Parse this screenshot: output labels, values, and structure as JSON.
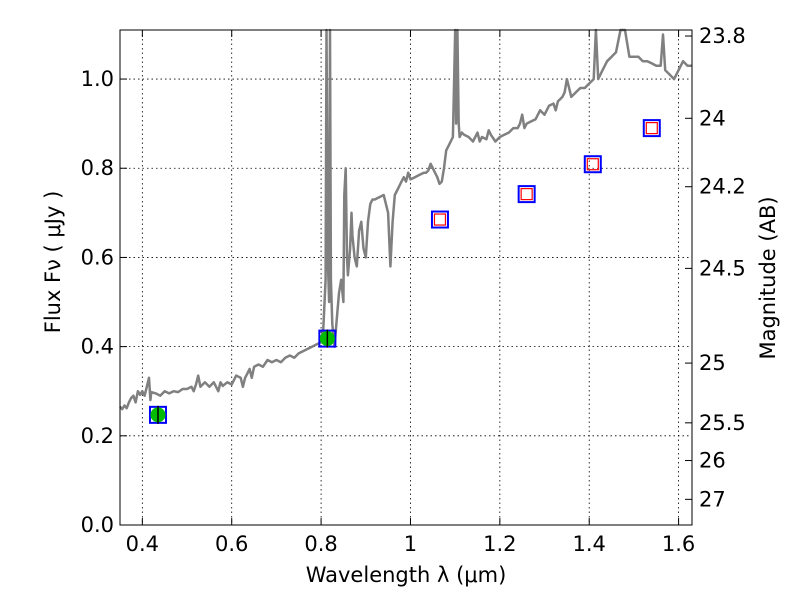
{
  "chart_data": {
    "type": "scatter",
    "xlabel": "Wavelength  λ (μm)",
    "ylabel": "Flux  Fν  ( μJy )",
    "ylabel_right": "Magnitude (AB)",
    "xlim": [
      0.35,
      1.63
    ],
    "ylim": [
      0.0,
      1.11
    ],
    "grid": true,
    "x_ticks": [
      {
        "value": 0.4,
        "label": "0.4"
      },
      {
        "value": 0.6,
        "label": "0.6"
      },
      {
        "value": 0.8,
        "label": "0.8"
      },
      {
        "value": 1.0,
        "label": "1"
      },
      {
        "value": 1.2,
        "label": "1.2"
      },
      {
        "value": 1.4,
        "label": "1.4"
      },
      {
        "value": 1.6,
        "label": "1.6"
      }
    ],
    "y_ticks": [
      {
        "value": 0.0,
        "label": "0.0"
      },
      {
        "value": 0.2,
        "label": "0.2"
      },
      {
        "value": 0.4,
        "label": "0.4"
      },
      {
        "value": 0.6,
        "label": "0.6"
      },
      {
        "value": 0.8,
        "label": "0.8"
      },
      {
        "value": 1.0,
        "label": "1.0"
      }
    ],
    "right_ticks": [
      {
        "mag": 23.8,
        "label": "23.8"
      },
      {
        "mag": 24.0,
        "label": "24"
      },
      {
        "mag": 24.2,
        "label": "24.2"
      },
      {
        "mag": 24.5,
        "label": "24.5"
      },
      {
        "mag": 25.0,
        "label": "25"
      },
      {
        "mag": 25.5,
        "label": "25.5"
      },
      {
        "mag": 26.0,
        "label": "26"
      },
      {
        "mag": 27.0,
        "label": "27"
      }
    ],
    "series": [
      {
        "kind": "line",
        "color": "#808080",
        "points": [
          [
            0.35,
            0.265
          ],
          [
            0.355,
            0.26
          ],
          [
            0.36,
            0.268
          ],
          [
            0.365,
            0.262
          ],
          [
            0.37,
            0.275
          ],
          [
            0.375,
            0.285
          ],
          [
            0.38,
            0.29
          ],
          [
            0.385,
            0.275
          ],
          [
            0.39,
            0.3
          ],
          [
            0.395,
            0.292
          ],
          [
            0.4,
            0.3
          ],
          [
            0.405,
            0.29
          ],
          [
            0.41,
            0.31
          ],
          [
            0.415,
            0.33
          ],
          [
            0.418,
            0.28
          ],
          [
            0.42,
            0.298
          ],
          [
            0.43,
            0.295
          ],
          [
            0.44,
            0.29
          ],
          [
            0.45,
            0.3
          ],
          [
            0.46,
            0.295
          ],
          [
            0.47,
            0.3
          ],
          [
            0.48,
            0.298
          ],
          [
            0.49,
            0.305
          ],
          [
            0.5,
            0.305
          ],
          [
            0.51,
            0.31
          ],
          [
            0.515,
            0.3
          ],
          [
            0.52,
            0.315
          ],
          [
            0.525,
            0.335
          ],
          [
            0.53,
            0.31
          ],
          [
            0.54,
            0.32
          ],
          [
            0.55,
            0.31
          ],
          [
            0.56,
            0.32
          ],
          [
            0.57,
            0.3
          ],
          [
            0.575,
            0.32
          ],
          [
            0.58,
            0.312
          ],
          [
            0.59,
            0.32
          ],
          [
            0.6,
            0.315
          ],
          [
            0.61,
            0.335
          ],
          [
            0.62,
            0.33
          ],
          [
            0.625,
            0.31
          ],
          [
            0.63,
            0.33
          ],
          [
            0.635,
            0.34
          ],
          [
            0.64,
            0.35
          ],
          [
            0.645,
            0.33
          ],
          [
            0.65,
            0.355
          ],
          [
            0.66,
            0.36
          ],
          [
            0.67,
            0.355
          ],
          [
            0.68,
            0.37
          ],
          [
            0.69,
            0.365
          ],
          [
            0.7,
            0.37
          ],
          [
            0.71,
            0.365
          ],
          [
            0.72,
            0.375
          ],
          [
            0.73,
            0.38
          ],
          [
            0.74,
            0.375
          ],
          [
            0.75,
            0.385
          ],
          [
            0.76,
            0.39
          ],
          [
            0.77,
            0.395
          ],
          [
            0.78,
            0.4
          ],
          [
            0.79,
            0.405
          ],
          [
            0.8,
            0.41
          ],
          [
            0.805,
            0.44
          ],
          [
            0.81,
            0.55
          ],
          [
            0.812,
            1.11
          ],
          [
            0.815,
            0.6
          ],
          [
            0.818,
            0.5
          ],
          [
            0.82,
            1.11
          ],
          [
            0.822,
            0.55
          ],
          [
            0.825,
            0.45
          ],
          [
            0.83,
            0.4
          ],
          [
            0.835,
            0.46
          ],
          [
            0.84,
            0.52
          ],
          [
            0.845,
            0.55
          ],
          [
            0.85,
            0.5
          ],
          [
            0.852,
            0.74
          ],
          [
            0.855,
            0.8
          ],
          [
            0.858,
            0.6
          ],
          [
            0.86,
            0.56
          ],
          [
            0.865,
            0.62
          ],
          [
            0.868,
            0.7
          ],
          [
            0.87,
            0.65
          ],
          [
            0.875,
            0.6
          ],
          [
            0.88,
            0.58
          ],
          [
            0.885,
            0.66
          ],
          [
            0.89,
            0.68
          ],
          [
            0.895,
            0.62
          ],
          [
            0.9,
            0.6
          ],
          [
            0.905,
            0.68
          ],
          [
            0.91,
            0.72
          ],
          [
            0.915,
            0.73
          ],
          [
            0.92,
            0.73
          ],
          [
            0.93,
            0.735
          ],
          [
            0.94,
            0.74
          ],
          [
            0.945,
            0.72
          ],
          [
            0.95,
            0.7
          ],
          [
            0.955,
            0.58
          ],
          [
            0.96,
            0.68
          ],
          [
            0.965,
            0.74
          ],
          [
            0.97,
            0.75
          ],
          [
            0.975,
            0.76
          ],
          [
            0.98,
            0.77
          ],
          [
            0.985,
            0.78
          ],
          [
            0.99,
            0.77
          ],
          [
            0.995,
            0.79
          ],
          [
            1.0,
            0.775
          ],
          [
            1.01,
            0.78
          ],
          [
            1.02,
            0.785
          ],
          [
            1.03,
            0.79
          ],
          [
            1.035,
            0.79
          ],
          [
            1.04,
            0.795
          ],
          [
            1.045,
            0.81
          ],
          [
            1.05,
            0.8
          ],
          [
            1.055,
            0.79
          ],
          [
            1.06,
            0.78
          ],
          [
            1.065,
            0.765
          ],
          [
            1.07,
            0.77
          ],
          [
            1.075,
            0.8
          ],
          [
            1.08,
            0.84
          ],
          [
            1.085,
            0.85
          ],
          [
            1.09,
            0.86
          ],
          [
            1.095,
            0.87
          ],
          [
            1.1,
            1.11
          ],
          [
            1.102,
            0.9
          ],
          [
            1.105,
            1.11
          ],
          [
            1.108,
            0.9
          ],
          [
            1.11,
            0.87
          ],
          [
            1.115,
            0.88
          ],
          [
            1.12,
            0.875
          ],
          [
            1.13,
            0.87
          ],
          [
            1.14,
            0.86
          ],
          [
            1.15,
            0.88
          ],
          [
            1.155,
            0.86
          ],
          [
            1.16,
            0.87
          ],
          [
            1.17,
            0.865
          ],
          [
            1.175,
            0.885
          ],
          [
            1.18,
            0.875
          ],
          [
            1.19,
            0.86
          ],
          [
            1.2,
            0.87
          ],
          [
            1.21,
            0.875
          ],
          [
            1.22,
            0.88
          ],
          [
            1.23,
            0.89
          ],
          [
            1.24,
            0.89
          ],
          [
            1.245,
            0.9
          ],
          [
            1.25,
            0.92
          ],
          [
            1.255,
            0.89
          ],
          [
            1.26,
            0.9
          ],
          [
            1.27,
            0.905
          ],
          [
            1.28,
            0.91
          ],
          [
            1.29,
            0.93
          ],
          [
            1.3,
            0.92
          ],
          [
            1.31,
            0.94
          ],
          [
            1.32,
            0.945
          ],
          [
            1.325,
            0.93
          ],
          [
            1.33,
            0.95
          ],
          [
            1.34,
            0.96
          ],
          [
            1.345,
            0.97
          ],
          [
            1.35,
            1.0
          ],
          [
            1.355,
            0.98
          ],
          [
            1.36,
            0.96
          ],
          [
            1.37,
            0.97
          ],
          [
            1.38,
            0.98
          ],
          [
            1.39,
            0.98
          ],
          [
            1.4,
            0.99
          ],
          [
            1.41,
            1.0
          ],
          [
            1.415,
            1.11
          ],
          [
            1.42,
            1.0
          ],
          [
            1.43,
            1.02
          ],
          [
            1.44,
            1.04
          ],
          [
            1.45,
            1.05
          ],
          [
            1.46,
            1.06
          ],
          [
            1.47,
            1.11
          ],
          [
            1.48,
            1.11
          ],
          [
            1.49,
            1.05
          ],
          [
            1.5,
            1.05
          ],
          [
            1.51,
            1.05
          ],
          [
            1.52,
            1.04
          ],
          [
            1.53,
            1.04
          ],
          [
            1.54,
            1.035
          ],
          [
            1.55,
            1.03
          ],
          [
            1.56,
            1.03
          ],
          [
            1.565,
            1.1
          ],
          [
            1.57,
            1.02
          ],
          [
            1.58,
            1.01
          ],
          [
            1.59,
            1.0
          ],
          [
            1.6,
            1.02
          ],
          [
            1.61,
            1.04
          ],
          [
            1.62,
            1.03
          ],
          [
            1.63,
            1.03
          ]
        ]
      },
      {
        "kind": "markers",
        "marker": "open-square",
        "color": "#0000ff",
        "points": [
          [
            0.435,
            0.247
          ],
          [
            0.814,
            0.418
          ],
          [
            1.066,
            0.685
          ],
          [
            1.26,
            0.742
          ],
          [
            1.408,
            0.809
          ],
          [
            1.54,
            0.89
          ]
        ]
      },
      {
        "kind": "markers",
        "marker": "small-open-square",
        "color": "#ff0000",
        "points": [
          [
            1.066,
            0.685
          ],
          [
            1.26,
            0.742
          ],
          [
            1.408,
            0.809
          ],
          [
            1.54,
            0.89
          ]
        ]
      },
      {
        "kind": "markers",
        "marker": "filled-circle",
        "color": "#00bb00",
        "points": [
          [
            0.435,
            0.247
          ],
          [
            0.814,
            0.418
          ]
        ]
      }
    ]
  }
}
